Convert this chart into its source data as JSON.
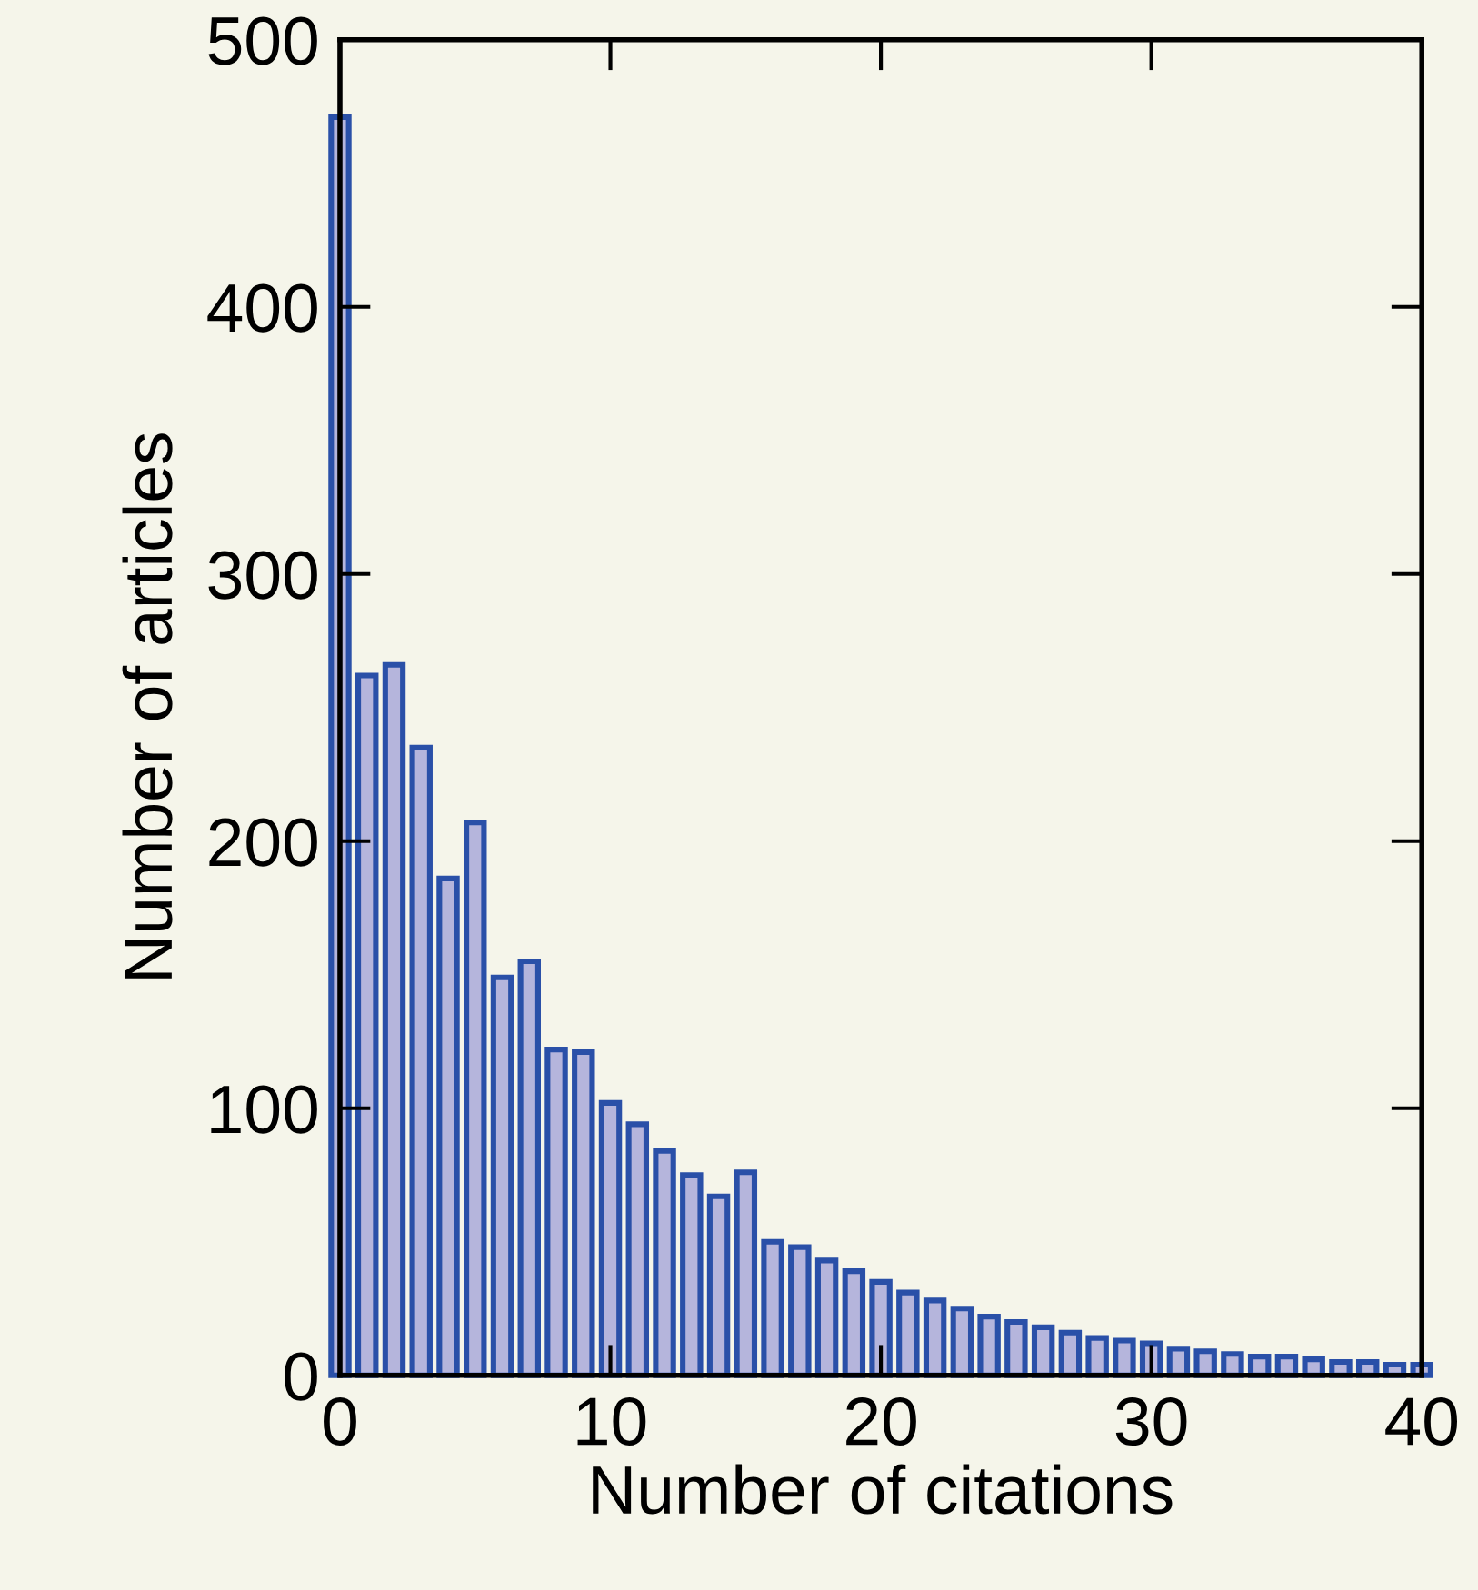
{
  "chart_data": {
    "type": "bar",
    "xlabel": "Number of citations",
    "ylabel": "Number of articles",
    "x": [
      0,
      1,
      2,
      3,
      4,
      5,
      6,
      7,
      8,
      9,
      10,
      11,
      12,
      13,
      14,
      15,
      16,
      17,
      18,
      19,
      20,
      21,
      22,
      23,
      24,
      25,
      26,
      27,
      28,
      29,
      30,
      31,
      32,
      33,
      34,
      35,
      36,
      37,
      38,
      39,
      40
    ],
    "values": [
      471,
      262,
      266,
      235,
      186,
      207,
      149,
      155,
      122,
      121,
      102,
      94,
      84,
      75,
      67,
      76,
      50,
      48,
      43,
      39,
      35,
      31,
      28,
      25,
      22,
      20,
      18,
      16,
      14,
      13,
      12,
      10,
      9,
      8,
      7,
      7,
      6,
      5,
      5,
      4,
      4
    ],
    "color": "#b5b5dc",
    "xlim": [
      0,
      40
    ],
    "xticks": [
      0,
      10,
      20,
      30,
      40
    ],
    "ylim": [
      0,
      500
    ],
    "yticks": [
      0,
      100,
      200,
      300,
      400,
      500
    ],
    "grid": false,
    "legend": false
  }
}
